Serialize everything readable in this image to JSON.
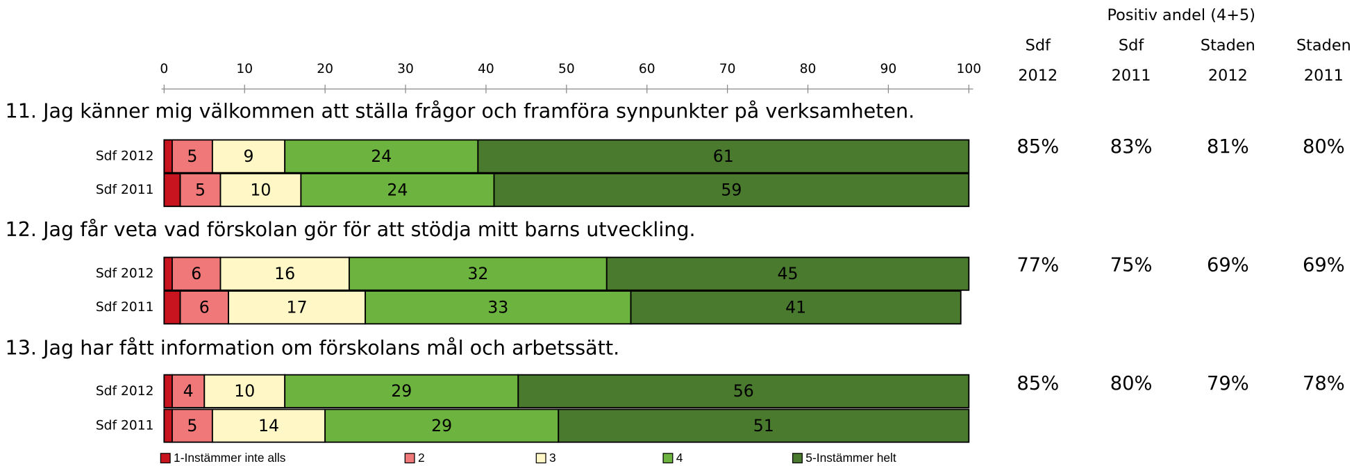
{
  "chart_data": {
    "type": "bar",
    "orientation": "horizontal",
    "stacked": true,
    "xlim": [
      0,
      100
    ],
    "xticks": [
      0,
      10,
      20,
      30,
      40,
      50,
      60,
      70,
      80,
      90,
      100
    ],
    "questions": [
      "11. Jag känner mig välkommen att ställa frågor och framföra synpunkter på verksamheten.",
      "12. Jag får veta vad förskolan gör för att stödja mitt barns utveckling.",
      "13. Jag har fått information om förskolans mål och arbetssätt."
    ],
    "categories": [
      "Sdf 2012",
      "Sdf 2011",
      "Sdf 2012",
      "Sdf 2011",
      "Sdf 2012",
      "Sdf 2011"
    ],
    "series": [
      {
        "name": "1-Instämmer inte alls",
        "color": "#c8141e",
        "values": [
          1,
          2,
          1,
          2,
          1,
          1
        ]
      },
      {
        "name": "2",
        "color": "#f07878",
        "values": [
          5,
          5,
          6,
          6,
          4,
          5
        ]
      },
      {
        "name": "3",
        "color": "#fff7c6",
        "values": [
          9,
          10,
          16,
          17,
          10,
          14
        ]
      },
      {
        "name": "4",
        "color": "#6db33f",
        "values": [
          24,
          24,
          32,
          33,
          29,
          29
        ]
      },
      {
        "name": "5-Instämmer helt",
        "color": "#4a7a2e",
        "values": [
          61,
          59,
          45,
          41,
          56,
          51
        ]
      }
    ],
    "table": {
      "title": "Positiv andel (4+5)",
      "columns": [
        [
          "Sdf",
          "2012"
        ],
        [
          "Sdf",
          "2011"
        ],
        [
          "Staden",
          "2012"
        ],
        [
          "Staden",
          "2011"
        ]
      ],
      "rows": [
        [
          "85%",
          "83%",
          "81%",
          "80%"
        ],
        [
          "77%",
          "75%",
          "69%",
          "69%"
        ],
        [
          "85%",
          "80%",
          "79%",
          "78%"
        ]
      ]
    }
  }
}
